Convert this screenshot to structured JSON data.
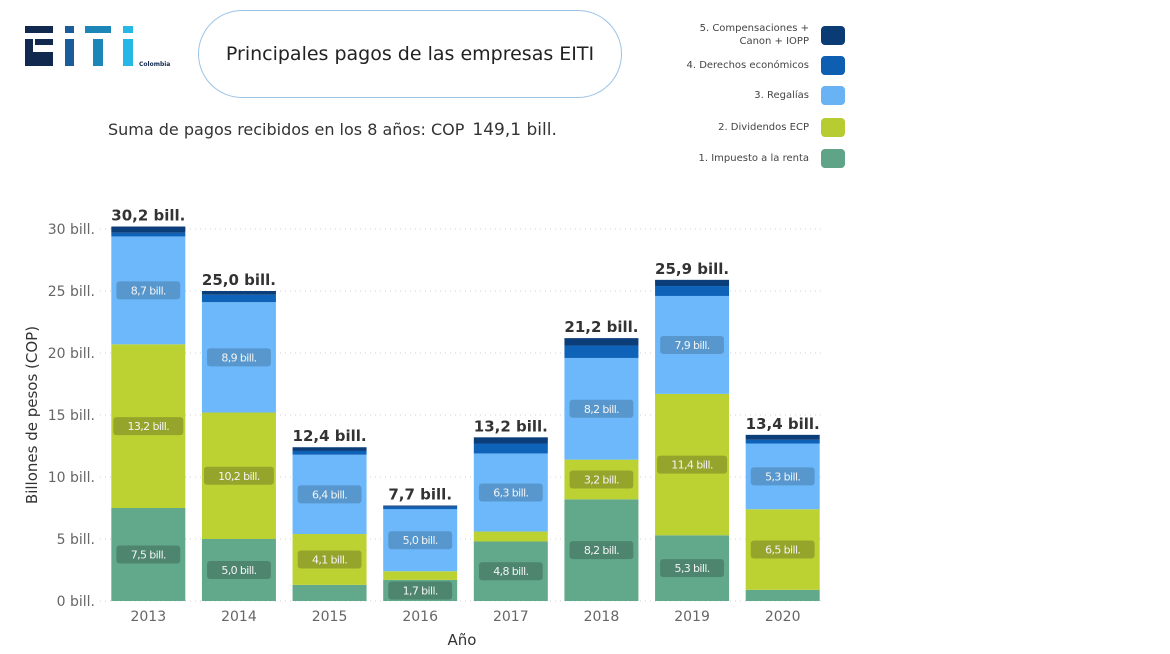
{
  "header": {
    "logo_text": "EITI",
    "logo_sub": "Colombia",
    "title": "Principales pagos de las empresas EITI",
    "subtitle_label": "Suma de pagos recibidos en los 8 años: COP",
    "subtitle_value": "149,1 bill."
  },
  "colors": {
    "renta": "#62a98b",
    "dividendos": "#bcd232",
    "regalias": "#6cb8fb",
    "derechos": "#0e62b8",
    "compensaciones": "#0b3d78"
  },
  "legend": [
    {
      "label": "5. Compensaciones + Canon + IOPP",
      "line1": "5. Compensaciones +",
      "line2": "Canon + IOPP",
      "key": "compensaciones"
    },
    {
      "label": "4. Derechos económicos",
      "key": "derechos"
    },
    {
      "label": "3. Regalías",
      "key": "regalias"
    },
    {
      "label": "2. Dividendos ECP",
      "key": "dividendos"
    },
    {
      "label": "1. Impuesto a la renta",
      "key": "renta"
    }
  ],
  "chart_data": {
    "type": "bar",
    "stacked": true,
    "title": "Principales pagos de las empresas EITI",
    "xlabel": "Año",
    "ylabel": "Billones de pesos (COP)",
    "ylim": [
      0,
      30
    ],
    "yticks": [
      0,
      5,
      10,
      15,
      20,
      25,
      30
    ],
    "ytick_labels": [
      "0 bill.",
      "5 bill.",
      "10 bill.",
      "15 bill.",
      "20 bill.",
      "25 bill.",
      "30 bill."
    ],
    "grid": true,
    "legend_position": "top-right",
    "categories": [
      "2013",
      "2014",
      "2015",
      "2016",
      "2017",
      "2018",
      "2019",
      "2020"
    ],
    "series": [
      {
        "name": "1. Impuesto a la renta",
        "key": "renta",
        "values": [
          7.5,
          5.0,
          1.3,
          1.7,
          4.8,
          8.2,
          5.3,
          0.9
        ],
        "labels": [
          "7,5 bill.",
          "5,0 bill.",
          "",
          "1,7 bill.",
          "4,8 bill.",
          "8,2 bill.",
          "5,3 bill.",
          ""
        ]
      },
      {
        "name": "2. Dividendos ECP",
        "key": "dividendos",
        "values": [
          13.2,
          10.2,
          4.1,
          0.7,
          0.8,
          3.2,
          11.4,
          6.5
        ],
        "labels": [
          "13,2 bill.",
          "10,2 bill.",
          "4,1 bill.",
          "",
          "",
          "3,2 bill.",
          "11,4 bill.",
          "6,5 bill."
        ]
      },
      {
        "name": "3. Regalías",
        "key": "regalias",
        "values": [
          8.7,
          8.9,
          6.4,
          5.0,
          6.3,
          8.2,
          7.9,
          5.3
        ],
        "labels": [
          "8,7 bill.",
          "8,9 bill.",
          "6,4 bill.",
          "5,0 bill.",
          "6,3 bill.",
          "8,2 bill.",
          "7,9 bill.",
          "5,3 bill."
        ]
      },
      {
        "name": "4. Derechos económicos",
        "key": "derechos",
        "values": [
          0.3,
          0.6,
          0.3,
          0.2,
          0.8,
          1.0,
          0.8,
          0.3
        ],
        "labels": [
          "",
          "",
          "",
          "",
          "",
          "",
          "",
          ""
        ]
      },
      {
        "name": "5. Compensaciones + Canon + IOPP",
        "key": "compensaciones",
        "values": [
          0.5,
          0.3,
          0.3,
          0.1,
          0.5,
          0.6,
          0.5,
          0.4
        ],
        "labels": [
          "",
          "",
          "",
          "",
          "",
          "",
          "",
          ""
        ]
      }
    ],
    "totals": [
      30.2,
      25.0,
      12.4,
      7.7,
      13.2,
      21.2,
      25.9,
      13.4
    ],
    "total_labels": [
      "30,2 bill.",
      "25,0 bill.",
      "12,4 bill.",
      "7,7 bill.",
      "13,2 bill.",
      "21,2 bill.",
      "25,9 bill.",
      "13,4 bill."
    ]
  }
}
